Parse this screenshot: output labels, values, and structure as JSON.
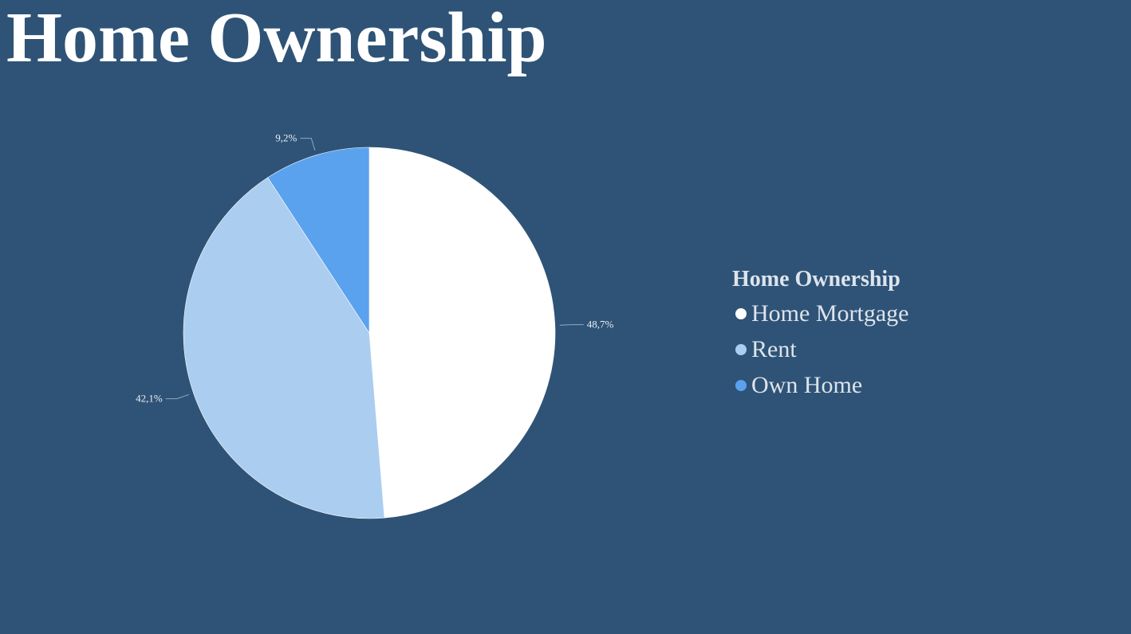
{
  "page": {
    "title": "Home Ownership"
  },
  "colors": {
    "background": "#2e5376",
    "home_mortgage": "#ffffff",
    "rent": "#abcdf0",
    "own_home": "#5ba2ee"
  },
  "chart_data": {
    "type": "pie",
    "title": "Home Ownership",
    "start_angle": "12 o'clock, clockwise",
    "slices": [
      {
        "name": "Home Mortgage",
        "value": 48.7,
        "label": "48,7%",
        "color": "#ffffff"
      },
      {
        "name": "Rent",
        "value": 42.1,
        "label": "42,1%",
        "color": "#abcdf0"
      },
      {
        "name": "Own Home",
        "value": 9.2,
        "label": "9,2%",
        "color": "#5ba2ee"
      }
    ],
    "legend": {
      "title": "Home Ownership",
      "placement": "right"
    }
  }
}
